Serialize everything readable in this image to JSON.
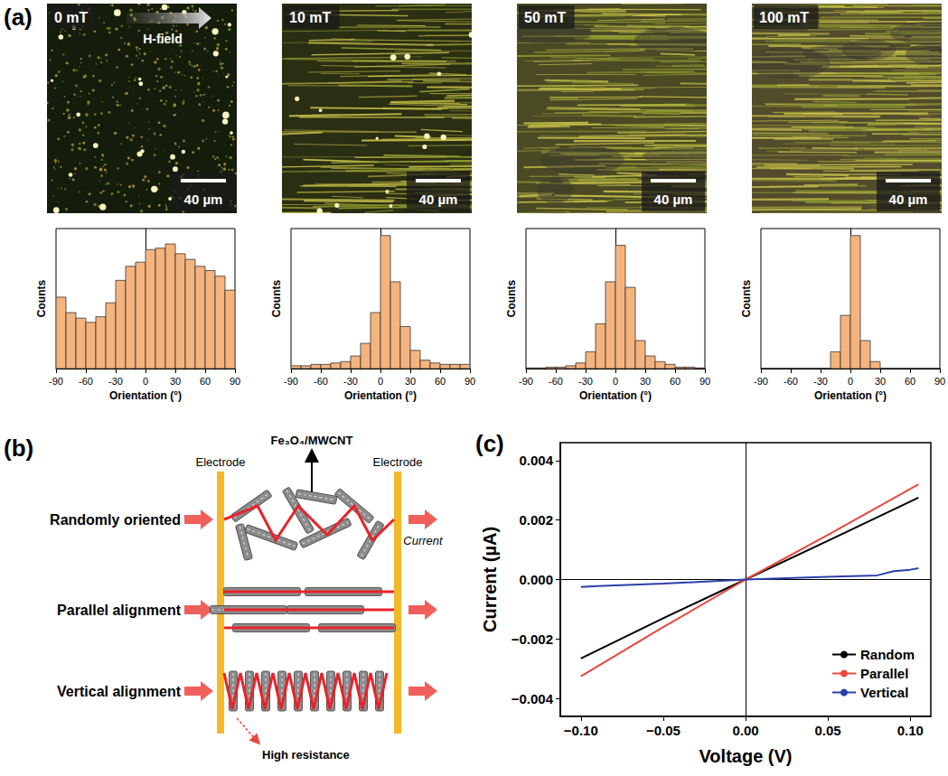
{
  "chart_data": [
    {
      "type": "histogram",
      "xlabel": "Orientation (°)",
      "ylabel": "Counts",
      "bins": [
        -90,
        -80,
        -70,
        -60,
        -50,
        -40,
        -30,
        -20,
        -10,
        0,
        10,
        20,
        30,
        40,
        50,
        60,
        70,
        80,
        90
      ],
      "counts": [
        51,
        40,
        36,
        33,
        37,
        47,
        63,
        73,
        76,
        85,
        86,
        89,
        82,
        78,
        73,
        70,
        66,
        56
      ],
      "color": "#f5b47e",
      "xlim": [
        -90,
        90
      ],
      "xticks": [
        -90,
        -60,
        -30,
        0,
        30,
        60,
        90
      ],
      "ylim": [
        0,
        100
      ],
      "tick_labels": "x"
    },
    {
      "type": "histogram",
      "xlabel": "Orientation (°)",
      "ylabel": "Counts",
      "bins": [
        -90,
        -80,
        -70,
        -60,
        -50,
        -40,
        -30,
        -20,
        -10,
        0,
        10,
        20,
        30,
        40,
        50,
        60,
        70,
        80,
        90
      ],
      "counts": [
        2,
        2,
        3,
        3,
        4,
        5,
        9,
        18,
        40,
        95,
        62,
        30,
        13,
        6,
        4,
        3,
        3,
        3
      ],
      "color": "#f5b47e",
      "xlim": [
        -90,
        90
      ],
      "xticks": [
        -90,
        -60,
        -30,
        0,
        30,
        60,
        90
      ],
      "ylim": [
        0,
        100
      ],
      "tick_labels": "x"
    },
    {
      "type": "histogram",
      "xlabel": "Orientation (°)",
      "ylabel": "Counts",
      "bins": [
        -90,
        -80,
        -70,
        -60,
        -50,
        -40,
        -30,
        -20,
        -10,
        0,
        10,
        20,
        30,
        40,
        50,
        60,
        70,
        80,
        90
      ],
      "counts": [
        0.5,
        0.5,
        1,
        1,
        2,
        4,
        12,
        32,
        62,
        88,
        58,
        20,
        9,
        5,
        3,
        1,
        1,
        0.5
      ],
      "color": "#f5b47e",
      "xlim": [
        -90,
        90
      ],
      "xticks": [
        -90,
        -60,
        -30,
        0,
        30,
        60,
        90
      ],
      "ylim": [
        0,
        100
      ],
      "tick_labels": "x"
    },
    {
      "type": "histogram",
      "xlabel": "Orientation (°)",
      "ylabel": "Counts",
      "bins": [
        -90,
        -80,
        -70,
        -60,
        -50,
        -40,
        -30,
        -20,
        -10,
        0,
        10,
        20,
        30,
        40,
        50,
        60,
        70,
        80,
        90
      ],
      "counts": [
        0,
        0,
        0,
        0,
        0,
        0,
        0,
        12,
        38,
        95,
        20,
        5,
        0,
        0,
        0,
        0,
        0,
        0
      ],
      "color": "#f5b47e",
      "xlim": [
        -90,
        90
      ],
      "xticks": [
        -90,
        -60,
        -30,
        0,
        30,
        60,
        90
      ],
      "ylim": [
        0,
        100
      ],
      "tick_labels": "x"
    },
    {
      "type": "line",
      "xlabel": "Voltage (V)",
      "ylabel": "Current (µA)",
      "xlim": [
        -0.1125,
        0.1125
      ],
      "xticks": [
        {
          "value": -0.1,
          "label": "−0.10"
        },
        {
          "value": -0.05,
          "label": "−0.05"
        },
        {
          "value": 0,
          "label": "0.00"
        },
        {
          "value": 0.05,
          "label": "0.05"
        },
        {
          "value": 0.1,
          "label": "0.10"
        }
      ],
      "ylim": [
        -0.0046,
        0.0046
      ],
      "yticks": [
        {
          "value": -0.004,
          "label": "−0.004"
        },
        {
          "value": -0.002,
          "label": "−0.002"
        },
        {
          "value": 0,
          "label": "0.000"
        },
        {
          "value": 0.002,
          "label": "0.002"
        },
        {
          "value": 0.004,
          "label": "0.004"
        }
      ],
      "legend": "lower right",
      "grid": false,
      "marker": "none",
      "line_style": "solid",
      "series": [
        {
          "name": "Random",
          "color": "#000000",
          "x": [
            -0.1,
            -0.05,
            0,
            0.05,
            0.105
          ],
          "values": [
            -0.00265,
            -0.0013,
            0,
            0.0013,
            0.00275
          ]
        },
        {
          "name": "Parallel",
          "color": "#e8483f",
          "x": [
            -0.1,
            -0.05,
            0,
            0.05,
            0.105
          ],
          "values": [
            -0.00325,
            -0.0016,
            0,
            0.0015,
            0.0032
          ]
        },
        {
          "name": "Vertical",
          "color": "#2b3fa8",
          "x": [
            -0.1,
            -0.09,
            -0.05,
            0,
            0.05,
            0.08,
            0.09,
            0.1,
            0.105
          ],
          "values": [
            -0.00025,
            -0.00022,
            -0.00014,
            0,
            9e-05,
            0.00014,
            0.00028,
            0.00033,
            0.00038
          ]
        }
      ]
    }
  ],
  "figure": {
    "panel_labels": [
      "(a)",
      "(b)",
      "(c)"
    ],
    "field_arrow": "H-field",
    "images": [
      {
        "label": "0 mT",
        "scale_bar": "40 µm"
      },
      {
        "label": "10 mT",
        "scale_bar": "40 µm"
      },
      {
        "label": "50 mT",
        "scale_bar": "40 µm"
      },
      {
        "label": "100 mT",
        "scale_bar": "40 µm"
      }
    ],
    "diagram": {
      "electrode_labels": [
        "Electrode",
        "Electrode"
      ],
      "particle_label": "Fe₃O₄/MWCNT",
      "current_label": "Current",
      "rows": [
        "Randomly oriented",
        "Parallel alignment",
        "Vertical alignment"
      ],
      "note": "High resistance"
    }
  }
}
